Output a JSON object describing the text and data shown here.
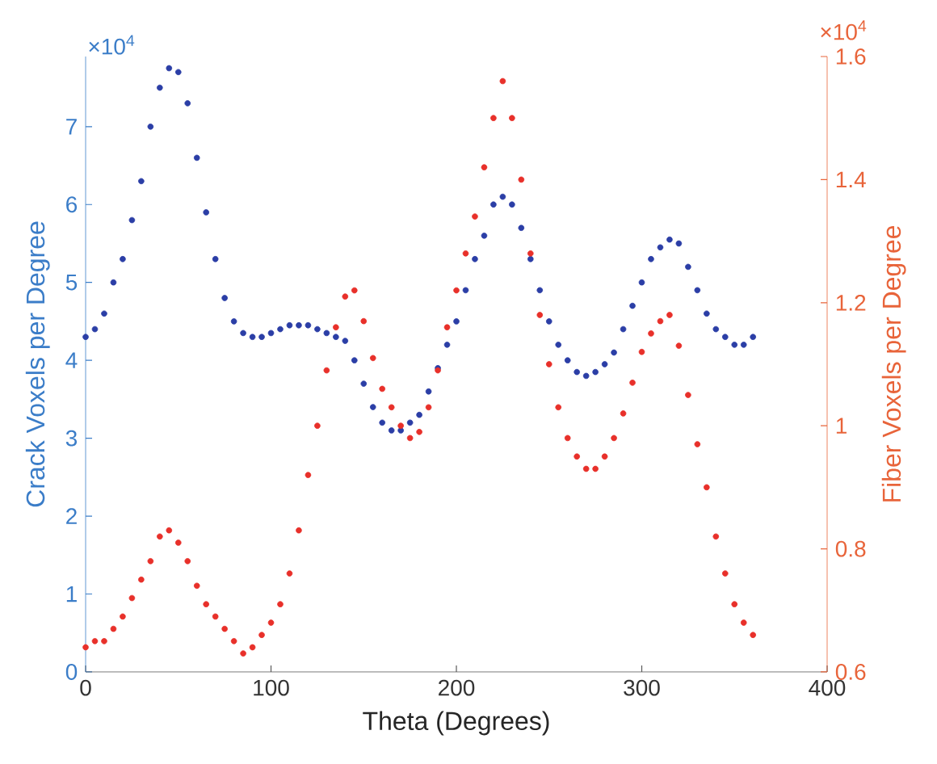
{
  "chart_data": {
    "type": "scatter",
    "xlabel": "Theta (Degrees)",
    "ylabel": "Crack Voxels per Degree",
    "y2label": "Fiber Voxels per Degree",
    "annotations": [
      "×10$^{4}$",
      "×10$^{4}$"
    ],
    "x": [
      0,
      5,
      10,
      15,
      20,
      25,
      30,
      35,
      40,
      45,
      50,
      55,
      60,
      65,
      70,
      75,
      80,
      85,
      90,
      95,
      100,
      105,
      110,
      115,
      120,
      125,
      130,
      135,
      140,
      145,
      150,
      155,
      160,
      165,
      170,
      175,
      180,
      185,
      190,
      195,
      200,
      205,
      210,
      215,
      220,
      225,
      230,
      235,
      240,
      245,
      250,
      255,
      260,
      265,
      270,
      275,
      280,
      285,
      290,
      295,
      300,
      305,
      310,
      315,
      320,
      325,
      330,
      335,
      340,
      345,
      350,
      355,
      360
    ],
    "series": [
      {
        "color": "#2b3ea6",
        "values": [
          4.3,
          4.4,
          4.6,
          5.0,
          5.3,
          5.8,
          6.3,
          7.0,
          7.5,
          7.75,
          7.7,
          7.3,
          6.6,
          5.9,
          5.3,
          4.8,
          4.5,
          4.35,
          4.3,
          4.3,
          4.35,
          4.4,
          4.45,
          4.45,
          4.45,
          4.4,
          4.35,
          4.3,
          4.25,
          4.0,
          3.7,
          3.4,
          3.2,
          3.1,
          3.1,
          3.2,
          3.3,
          3.6,
          3.9,
          4.2,
          4.5,
          4.9,
          5.3,
          5.6,
          6.0,
          6.1,
          6.0,
          5.7,
          5.3,
          4.9,
          4.5,
          4.2,
          4.0,
          3.85,
          3.8,
          3.85,
          3.95,
          4.1,
          4.4,
          4.7,
          5.0,
          5.3,
          5.45,
          5.55,
          5.5,
          5.2,
          4.9,
          4.6,
          4.4,
          4.3,
          4.2,
          4.2,
          4.3
        ]
      },
      {
        "color": "#e8302a",
        "axis": "y2",
        "values": [
          0.64,
          0.65,
          0.65,
          0.67,
          0.69,
          0.72,
          0.75,
          0.78,
          0.82,
          0.83,
          0.81,
          0.78,
          0.74,
          0.71,
          0.69,
          0.67,
          0.65,
          0.63,
          0.64,
          0.66,
          0.68,
          0.71,
          0.76,
          0.83,
          0.92,
          1.0,
          1.09,
          1.16,
          1.21,
          1.22,
          1.17,
          1.11,
          1.06,
          1.03,
          1.0,
          0.98,
          0.99,
          1.03,
          1.09,
          1.16,
          1.22,
          1.28,
          1.34,
          1.42,
          1.5,
          1.56,
          1.5,
          1.4,
          1.28,
          1.18,
          1.1,
          1.03,
          0.98,
          0.95,
          0.93,
          0.93,
          0.95,
          0.98,
          1.02,
          1.07,
          1.12,
          1.15,
          1.17,
          1.18,
          1.13,
          1.05,
          0.97,
          0.9,
          0.82,
          0.76,
          0.71,
          0.68,
          0.66
        ]
      }
    ],
    "xlim": [
      0,
      400
    ],
    "xticks": [
      0,
      100,
      200,
      300,
      400
    ],
    "ylim": [
      0,
      7.9
    ],
    "yticks": [
      0,
      1,
      2,
      3,
      4,
      5,
      6,
      7
    ],
    "y2lim": [
      0.6,
      1.6
    ],
    "y2ticks": [
      0.6,
      0.8,
      1,
      1.2,
      1.4,
      1.6
    ]
  }
}
